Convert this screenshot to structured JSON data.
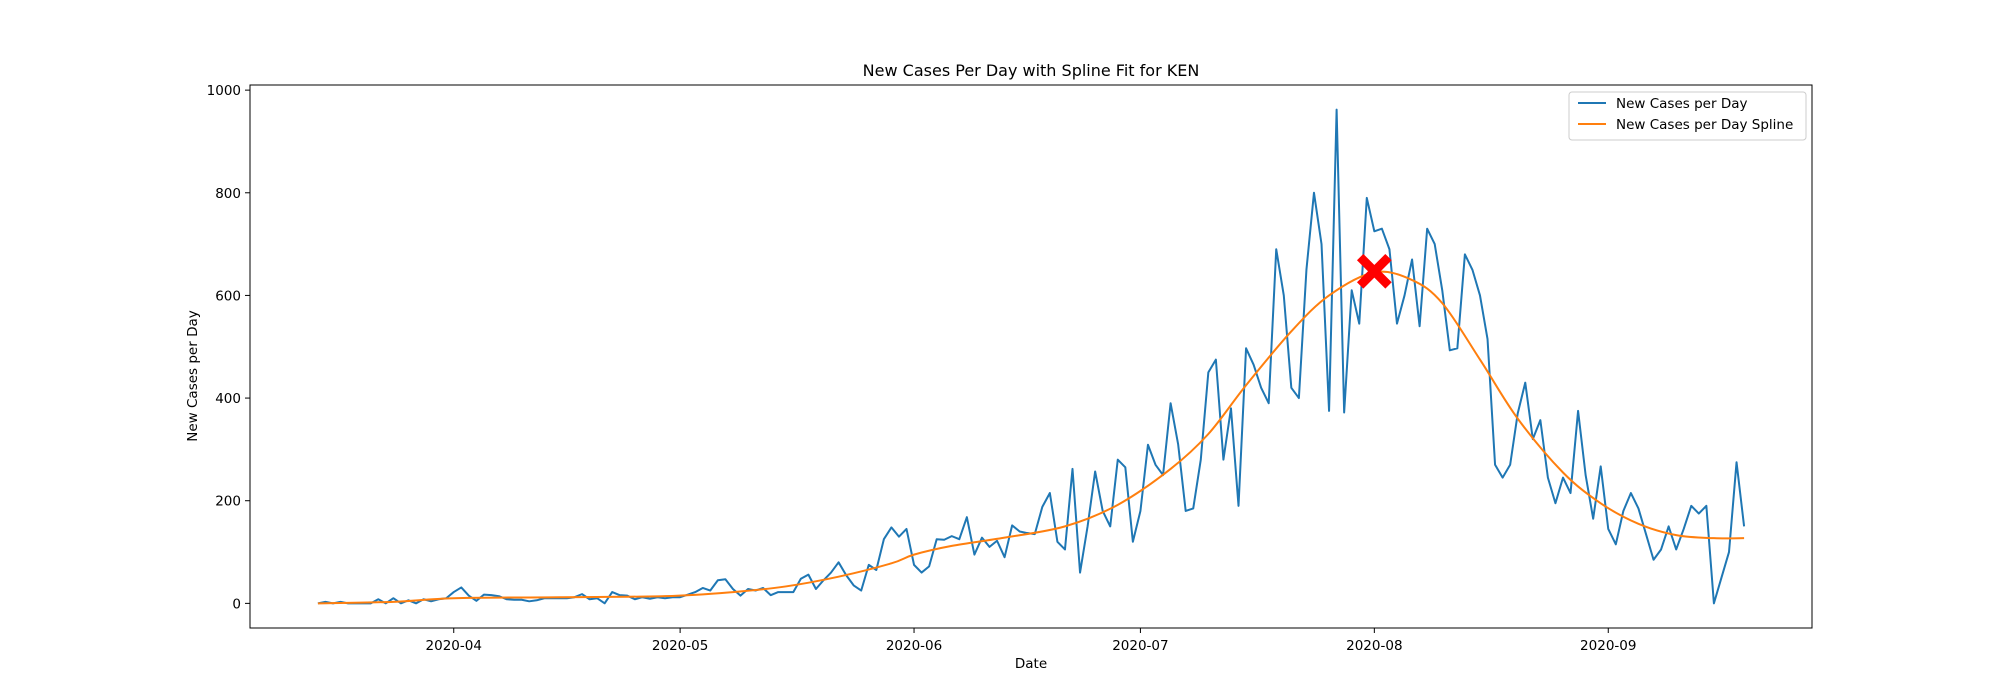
{
  "chart_data": {
    "type": "line",
    "title": "New Cases Per Day with Spline Fit for KEN",
    "xlabel": "Date",
    "ylabel": "New Cases per Day",
    "xlim": [
      "2020-03-05",
      "2020-09-28"
    ],
    "ylim": [
      -48,
      1010
    ],
    "x_ticks": [
      "2020-04-01",
      "2020-05-01",
      "2020-06-01",
      "2020-07-01",
      "2020-08-01",
      "2020-09-01"
    ],
    "x_tick_labels": [
      "2020-04",
      "2020-05",
      "2020-06",
      "2020-07",
      "2020-08",
      "2020-09"
    ],
    "y_ticks": [
      0,
      200,
      400,
      600,
      800,
      1000
    ],
    "y_tick_labels": [
      "0",
      "200",
      "400",
      "600",
      "800",
      "1000"
    ],
    "grid": false,
    "legend": "top-right",
    "series": [
      {
        "name": "New Cases per Day",
        "color": "#1f77b4",
        "x_start": "2020-03-14",
        "values": [
          0,
          3,
          0,
          3,
          0,
          0,
          0,
          0,
          8,
          0,
          10,
          0,
          6,
          0,
          8,
          4,
          8,
          10,
          22,
          31,
          15,
          5,
          17,
          16,
          14,
          8,
          7,
          7,
          4,
          6,
          10,
          10,
          10,
          10,
          12,
          18,
          8,
          10,
          0,
          22,
          16,
          15,
          8,
          12,
          9,
          12,
          10,
          12,
          12,
          17,
          22,
          30,
          25,
          45,
          47,
          28,
          15,
          28,
          25,
          30,
          16,
          22,
          22,
          22,
          48,
          56,
          28,
          45,
          60,
          80,
          55,
          35,
          25,
          75,
          65,
          125,
          148,
          130,
          145,
          75,
          60,
          72,
          125,
          124,
          131,
          125,
          168,
          95,
          128,
          110,
          122,
          90,
          152,
          140,
          137,
          135,
          188,
          215,
          120,
          105,
          262,
          60,
          150,
          257,
          180,
          150,
          280,
          265,
          120,
          180,
          309,
          270,
          250,
          390,
          310,
          180,
          185,
          280,
          450,
          475,
          280,
          380,
          190,
          497,
          465,
          420,
          390,
          690,
          600,
          420,
          400,
          650,
          800,
          700,
          375,
          962,
          372,
          610,
          545,
          790,
          725,
          730,
          690,
          545,
          600,
          670,
          540,
          730,
          700,
          610,
          493,
          497,
          680,
          650,
          600,
          515,
          270,
          245,
          270,
          370,
          430,
          320,
          357,
          245,
          195,
          245,
          215,
          375,
          250,
          165,
          267,
          145,
          115,
          180,
          215,
          185,
          135,
          85,
          105,
          150,
          105,
          145,
          190,
          175,
          190,
          0,
          50,
          100,
          275,
          150
        ]
      },
      {
        "name": "New Cases per Day Spline",
        "color": "#ff7f0e",
        "knots": [
          [
            "2020-03-14",
            0
          ],
          [
            "2020-03-24",
            3
          ],
          [
            "2020-04-01",
            10
          ],
          [
            "2020-04-15",
            12
          ],
          [
            "2020-04-29",
            14
          ],
          [
            "2020-05-08",
            22
          ],
          [
            "2020-05-15",
            33
          ],
          [
            "2020-05-22",
            52
          ],
          [
            "2020-05-29",
            78
          ],
          [
            "2020-06-01",
            95
          ],
          [
            "2020-06-06",
            112
          ],
          [
            "2020-06-13",
            128
          ],
          [
            "2020-06-21",
            150
          ],
          [
            "2020-06-28",
            192
          ],
          [
            "2020-07-05",
            262
          ],
          [
            "2020-07-10",
            330
          ],
          [
            "2020-07-15",
            425
          ],
          [
            "2020-07-21",
            530
          ],
          [
            "2020-07-26",
            600
          ],
          [
            "2020-08-01",
            645
          ],
          [
            "2020-08-06",
            630
          ],
          [
            "2020-08-10",
            585
          ],
          [
            "2020-08-15",
            475
          ],
          [
            "2020-08-20",
            360
          ],
          [
            "2020-08-26",
            255
          ],
          [
            "2020-08-31",
            195
          ],
          [
            "2020-09-05",
            155
          ],
          [
            "2020-09-10",
            133
          ],
          [
            "2020-09-15",
            127
          ],
          [
            "2020-09-19",
            127
          ]
        ]
      }
    ],
    "marker": {
      "x": "2020-08-01",
      "y": 647,
      "color": "#ff0000",
      "shape": "X"
    }
  }
}
